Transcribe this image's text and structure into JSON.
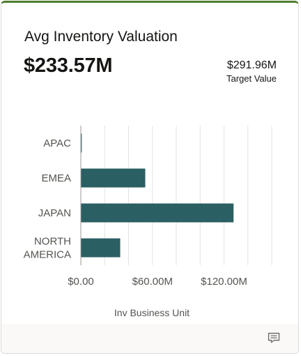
{
  "card": {
    "title": "Avg Inventory Valuation",
    "value": "$233.57M",
    "target_value": "$291.96M",
    "target_label": "Target Value",
    "accent_color": "#4f7d2d",
    "footer_icon": "comment-icon"
  },
  "chart_data": {
    "type": "bar",
    "orientation": "horizontal",
    "categories": [
      "APAC",
      "EMEA",
      "JAPAN",
      "NORTH AMERICA"
    ],
    "category_lines": [
      [
        "APAC"
      ],
      [
        "EMEA"
      ],
      [
        "JAPAN"
      ],
      [
        "NORTH",
        "AMERICA"
      ]
    ],
    "values": [
      0.8,
      54,
      128,
      33
    ],
    "xlim": [
      0,
      160
    ],
    "x_ticks": [
      0,
      60,
      120
    ],
    "x_tick_labels": [
      "$0.00",
      "$60.00M",
      "$120.00M"
    ],
    "xlabel": "Inv Business Unit",
    "grid": true,
    "bar_color": "#2a5f63"
  }
}
